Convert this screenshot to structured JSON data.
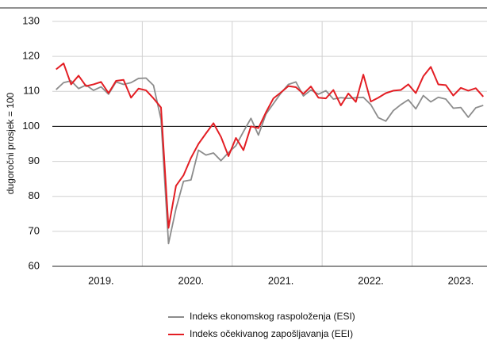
{
  "chart_data": {
    "type": "line",
    "ylabel": "dugoročni prosjek = 100",
    "categories": [
      null,
      null,
      null,
      null,
      null,
      null,
      "2019.",
      null,
      null,
      null,
      null,
      null,
      null,
      null,
      null,
      null,
      null,
      null,
      "2020.",
      null,
      null,
      null,
      null,
      null,
      null,
      null,
      null,
      null,
      null,
      null,
      "2021.",
      null,
      null,
      null,
      null,
      null,
      null,
      null,
      null,
      null,
      null,
      null,
      "2022.",
      null,
      null,
      null,
      null,
      null,
      null,
      null,
      null,
      null,
      null,
      null,
      "2023.",
      null,
      null,
      null
    ],
    "series": [
      {
        "name": "Indeks ekonomskog raspoloženja (ESI)",
        "color": "#8c8c8c",
        "values": [
          110.5,
          112.5,
          113,
          110.8,
          111.8,
          110.3,
          111.3,
          109.2,
          112.7,
          112,
          112.5,
          113.7,
          113.8,
          111.7,
          102,
          66.5,
          76.5,
          84.3,
          84.7,
          93.2,
          91.8,
          92.4,
          90.2,
          92.5,
          94.5,
          98.5,
          102.3,
          97.5,
          103.5,
          106.5,
          109.5,
          112,
          112.7,
          108.7,
          110.4,
          109.2,
          110.2,
          107.8,
          108.2,
          108,
          108.2,
          108.3,
          106.2,
          102.5,
          101.5,
          104.5,
          106.2,
          107.6,
          105,
          108.8,
          107,
          108.3,
          107.8,
          105.2,
          105.4,
          102.6,
          105.3,
          106
        ]
      },
      {
        "name": "Indeks očekivanog zapošljavanja (EEI)",
        "color": "#e31e24",
        "values": [
          116.3,
          118,
          112,
          114.5,
          111.5,
          112,
          112.7,
          109.5,
          113,
          113.3,
          108.2,
          110.8,
          110.3,
          108,
          105.4,
          71,
          83,
          86,
          91,
          95,
          98,
          100.9,
          97,
          91.5,
          96.7,
          93.2,
          100,
          99.5,
          104,
          108,
          109.7,
          111.5,
          111.2,
          109.3,
          111.4,
          108.2,
          108,
          110.4,
          106,
          109.4,
          107,
          114.8,
          107.1,
          108.2,
          109.5,
          110.2,
          110.4,
          112,
          109.5,
          114.3,
          117,
          112,
          111.8,
          108.8,
          111,
          110.2,
          110.9,
          108.5
        ]
      }
    ],
    "ylim": [
      60,
      130
    ],
    "yticks": [
      60,
      70,
      80,
      90,
      100,
      110,
      120,
      130
    ],
    "grid": true,
    "reference_line": 100,
    "legend": "bottom"
  }
}
